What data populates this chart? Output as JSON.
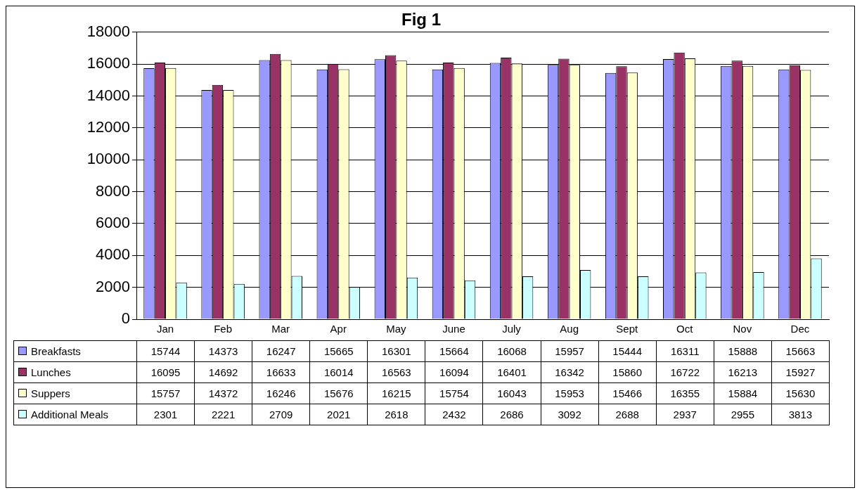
{
  "chart_data": {
    "type": "bar",
    "title": "Fig 1",
    "categories": [
      "Jan",
      "Feb",
      "Mar",
      "Apr",
      "May",
      "June",
      "July",
      "Aug",
      "Sept",
      "Oct",
      "Nov",
      "Dec"
    ],
    "series": [
      {
        "name": "Breakfasts",
        "color": "#9999ff",
        "values": [
          15744,
          14373,
          16247,
          15665,
          16301,
          15664,
          16068,
          15957,
          15444,
          16311,
          15888,
          15663
        ]
      },
      {
        "name": "Lunches",
        "color": "#993366",
        "values": [
          16095,
          14692,
          16633,
          16014,
          16563,
          16094,
          16401,
          16342,
          15860,
          16722,
          16213,
          15927
        ]
      },
      {
        "name": "Suppers",
        "color": "#ffffcc",
        "values": [
          15757,
          14372,
          16246,
          15676,
          16215,
          15754,
          16043,
          15953,
          15466,
          16355,
          15884,
          15630
        ]
      },
      {
        "name": "Additional Meals",
        "color": "#ccffff",
        "values": [
          2301,
          2221,
          2709,
          2021,
          2618,
          2432,
          2686,
          3092,
          2688,
          2937,
          2955,
          3813
        ]
      }
    ],
    "ylim": [
      0,
      18000
    ],
    "yticks": [
      0,
      2000,
      4000,
      6000,
      8000,
      10000,
      12000,
      14000,
      16000,
      18000
    ],
    "grid": "y",
    "legend": "bottom left",
    "data_labels": true
  }
}
